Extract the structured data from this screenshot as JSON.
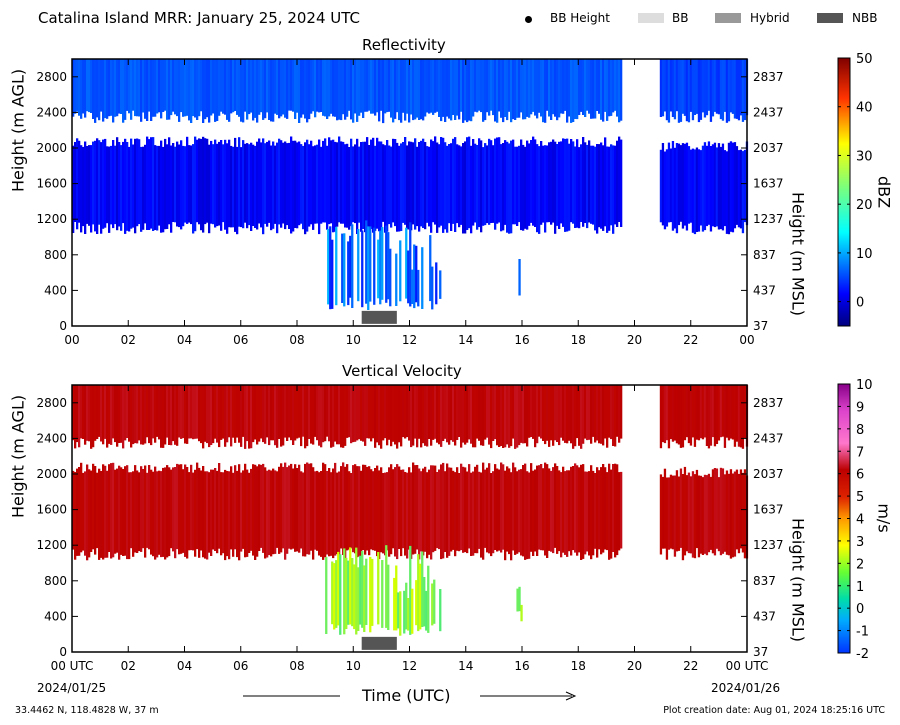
{
  "header": {
    "title": "Catalina Island MRR:  January 25, 2024 UTC",
    "legend": [
      {
        "label": "BB Height",
        "symbol": "dot",
        "color": "#000000"
      },
      {
        "label": "BB",
        "symbol": "box",
        "color": "#dddddd"
      },
      {
        "label": "Hybrid",
        "symbol": "box",
        "color": "#999999"
      },
      {
        "label": "NBB",
        "symbol": "box",
        "color": "#555555"
      }
    ]
  },
  "footer": {
    "location": "33.4462 N, 118.4828 W, 37 m",
    "created": "Plot creation date: Aug 01, 2024 18:25:16 UTC",
    "start_date": "2024/01/25",
    "end_date": "2024/01/26"
  },
  "chart_data": [
    {
      "type": "heatmap",
      "title": "Reflectivity",
      "xlabel": "",
      "ylabel": "Height (m AGL)",
      "ylabel_right": "Height (m MSL)",
      "x_ticks": [
        "00",
        "02",
        "04",
        "06",
        "08",
        "10",
        "12",
        "14",
        "16",
        "18",
        "20",
        "22",
        "00"
      ],
      "xlim": [
        0,
        24
      ],
      "ylim": [
        0,
        3000
      ],
      "y_ticks": [
        0,
        400,
        800,
        1200,
        1600,
        2000,
        2400,
        2800
      ],
      "y_ticks_right": [
        "37",
        "437",
        "837",
        "1237",
        "1637",
        "2037",
        "2437",
        "2837"
      ],
      "colorbar": {
        "label": "dBZ",
        "range": [
          -5,
          50
        ],
        "ticks": [
          0,
          10,
          20,
          30,
          40,
          50
        ]
      },
      "regions": [
        {
          "name": "upper layer",
          "x": [
            0,
            19.5
          ],
          "y": [
            2400,
            3000
          ],
          "value": 3
        },
        {
          "name": "upper layer",
          "x": [
            20.9,
            24
          ],
          "y": [
            2400,
            3000
          ],
          "value": 2
        },
        {
          "name": "mid layer",
          "x": [
            0,
            19.5
          ],
          "y": [
            1150,
            2050
          ],
          "value": 0
        },
        {
          "name": "mid layer",
          "x": [
            20.9,
            24
          ],
          "y": [
            1150,
            2000
          ],
          "value": 0
        },
        {
          "name": "rain",
          "x": [
            9.0,
            13.1
          ],
          "y": [
            300,
            1200
          ],
          "value": 5
        },
        {
          "name": "rain",
          "x": [
            15.8,
            15.95
          ],
          "y": [
            450,
            900
          ],
          "value": 2
        }
      ],
      "bright_band_type": [
        {
          "type": "NBB",
          "x": [
            10.3,
            11.55
          ]
        }
      ]
    },
    {
      "type": "heatmap",
      "title": "Vertical Velocity",
      "xlabel": "Time (UTC)",
      "ylabel": "Height (m AGL)",
      "ylabel_right": "Height (m MSL)",
      "x_ticks": [
        "00 UTC",
        "02",
        "04",
        "06",
        "08",
        "10",
        "12",
        "14",
        "16",
        "18",
        "20",
        "22",
        "00 UTC"
      ],
      "xlim": [
        0,
        24
      ],
      "ylim": [
        0,
        3000
      ],
      "y_ticks": [
        0,
        400,
        800,
        1200,
        1600,
        2000,
        2400,
        2800
      ],
      "y_ticks_right": [
        "37",
        "437",
        "837",
        "1237",
        "1637",
        "2037",
        "2437",
        "2837"
      ],
      "colorbar": {
        "label": "m/s",
        "range": [
          -2,
          10
        ],
        "ticks": [
          -2,
          -1,
          0,
          1,
          2,
          3,
          4,
          5,
          6,
          7,
          8,
          9,
          10
        ]
      },
      "regions": [
        {
          "name": "upper layer",
          "x": [
            0,
            19.5
          ],
          "y": [
            2400,
            3000
          ],
          "value": 6
        },
        {
          "name": "upper layer",
          "x": [
            20.9,
            24
          ],
          "y": [
            2400,
            3000
          ],
          "value": 6
        },
        {
          "name": "mid layer",
          "x": [
            0,
            19.5
          ],
          "y": [
            1150,
            2050
          ],
          "value": 6
        },
        {
          "name": "mid layer",
          "x": [
            20.9,
            24
          ],
          "y": [
            1150,
            2000
          ],
          "value": 6
        },
        {
          "name": "rain",
          "x": [
            9.0,
            13.1
          ],
          "y": [
            300,
            1200
          ],
          "value": 1.5
        },
        {
          "name": "rain",
          "x": [
            15.8,
            15.95
          ],
          "y": [
            450,
            900
          ],
          "value": 1
        }
      ],
      "bright_band_type": [
        {
          "type": "NBB",
          "x": [
            10.3,
            11.55
          ]
        }
      ]
    }
  ]
}
